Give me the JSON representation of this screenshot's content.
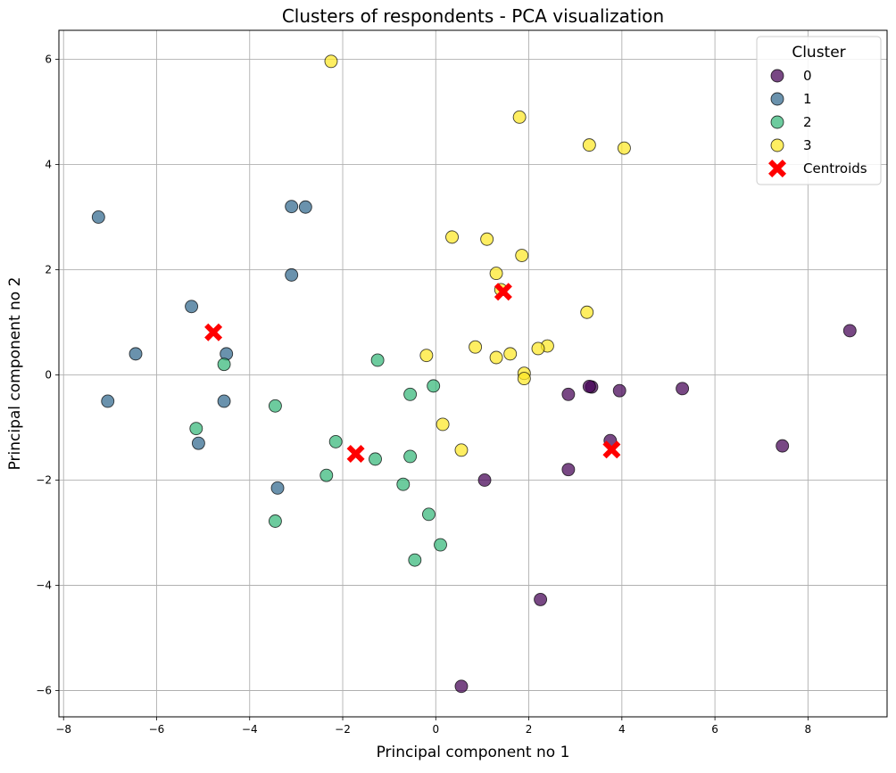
{
  "chart_data": {
    "type": "scatter",
    "title": "Clusters of respondents - PCA visualization",
    "xlabel": "Principal component no 1",
    "ylabel": "Principal component no 2",
    "xlim": [
      -8.1,
      9.7
    ],
    "ylim": [
      -6.5,
      6.55
    ],
    "xticks": [
      -8,
      -6,
      -4,
      -2,
      0,
      2,
      4,
      6,
      8
    ],
    "yticks": [
      -6,
      -4,
      -2,
      0,
      2,
      4,
      6
    ],
    "grid": true,
    "legend": {
      "title": "Cluster",
      "placement": "top-right",
      "entries": [
        "0",
        "1",
        "2",
        "3",
        "Centroids"
      ]
    },
    "series": [
      {
        "name": "0",
        "color": "#440154",
        "points": [
          [
            8.9,
            0.84
          ],
          [
            5.3,
            -0.26
          ],
          [
            7.45,
            -1.35
          ],
          [
            3.95,
            -0.3
          ],
          [
            3.35,
            -0.23
          ],
          [
            3.3,
            -0.22
          ],
          [
            2.85,
            -0.37
          ],
          [
            2.85,
            -1.8
          ],
          [
            3.75,
            -1.25
          ],
          [
            1.05,
            -2.0
          ],
          [
            2.25,
            -4.27
          ],
          [
            0.55,
            -5.92
          ]
        ]
      },
      {
        "name": "1",
        "color": "#31688e",
        "points": [
          [
            -7.25,
            3.0
          ],
          [
            -3.1,
            3.2
          ],
          [
            -2.8,
            3.19
          ],
          [
            -3.1,
            1.9
          ],
          [
            -5.25,
            1.3
          ],
          [
            -6.45,
            0.4
          ],
          [
            -4.5,
            0.4
          ],
          [
            -7.05,
            -0.5
          ],
          [
            -4.55,
            -0.5
          ],
          [
            -5.1,
            -1.3
          ],
          [
            -3.4,
            -2.15
          ]
        ]
      },
      {
        "name": "2",
        "color": "#35b779",
        "points": [
          [
            -4.55,
            0.2
          ],
          [
            -1.25,
            0.28
          ],
          [
            -0.55,
            -0.37
          ],
          [
            -0.05,
            -0.21
          ],
          [
            -5.15,
            -1.02
          ],
          [
            -3.45,
            -0.59
          ],
          [
            -2.15,
            -1.27
          ],
          [
            -1.3,
            -1.6
          ],
          [
            -0.55,
            -1.55
          ],
          [
            -2.35,
            -1.91
          ],
          [
            -0.7,
            -2.08
          ],
          [
            -3.45,
            -2.78
          ],
          [
            -0.15,
            -2.65
          ],
          [
            0.1,
            -3.23
          ],
          [
            -0.45,
            -3.52
          ]
        ]
      },
      {
        "name": "3",
        "color": "#fde725",
        "points": [
          [
            -2.25,
            5.96
          ],
          [
            1.8,
            4.9
          ],
          [
            3.3,
            4.37
          ],
          [
            4.05,
            4.31
          ],
          [
            0.35,
            2.62
          ],
          [
            1.1,
            2.58
          ],
          [
            1.85,
            2.27
          ],
          [
            1.3,
            1.93
          ],
          [
            1.4,
            1.62
          ],
          [
            3.25,
            1.19
          ],
          [
            2.4,
            0.55
          ],
          [
            2.2,
            0.5
          ],
          [
            0.85,
            0.53
          ],
          [
            1.6,
            0.4
          ],
          [
            -0.2,
            0.37
          ],
          [
            1.3,
            0.33
          ],
          [
            1.9,
            0.03
          ],
          [
            1.9,
            -0.07
          ],
          [
            0.15,
            -0.94
          ],
          [
            0.55,
            -1.43
          ]
        ]
      }
    ],
    "centroids": {
      "name": "Centroids",
      "color": "#ff0000",
      "points": [
        [
          -4.78,
          0.81
        ],
        [
          1.45,
          1.58
        ],
        [
          -1.72,
          -1.5
        ],
        [
          3.78,
          -1.42
        ]
      ]
    }
  }
}
